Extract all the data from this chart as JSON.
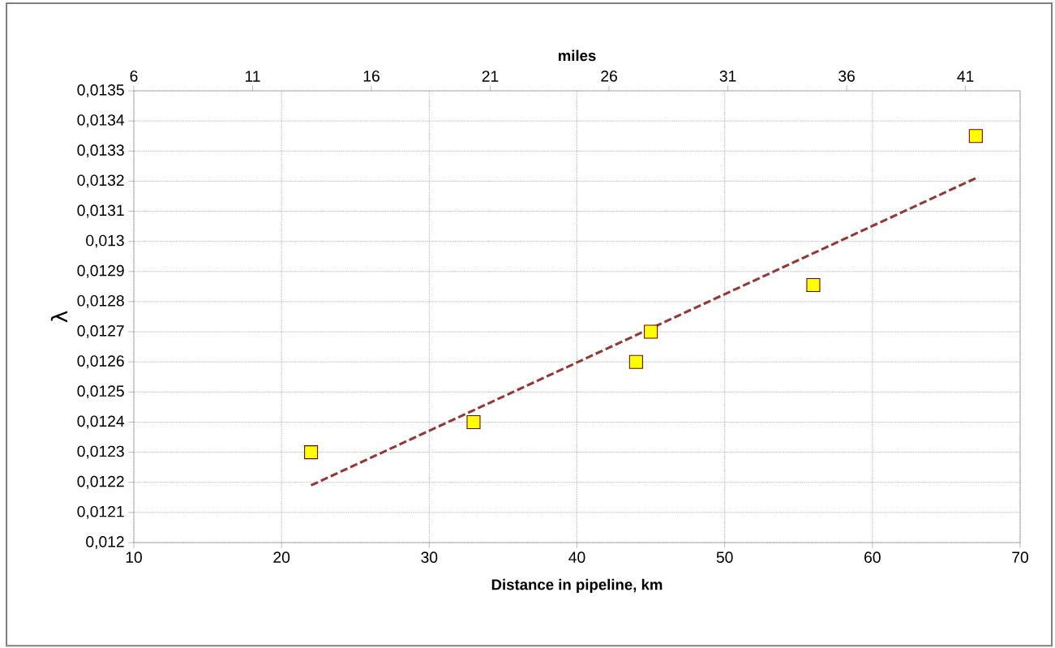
{
  "chart_data": {
    "type": "scatter",
    "xlabel": "Distance in pipeline, km",
    "ylabel": "λ",
    "x2label": "miles",
    "xlim": [
      10,
      70
    ],
    "xticks": [
      10,
      20,
      30,
      40,
      50,
      60,
      70
    ],
    "x2lim": [
      6,
      43.3
    ],
    "x2ticks": [
      6,
      11,
      16,
      21,
      26,
      31,
      36,
      41
    ],
    "ylim": [
      0.012,
      0.0135
    ],
    "yticks": [
      {
        "value": 0.012,
        "label": "0,012"
      },
      {
        "value": 0.0121,
        "label": "0,0121"
      },
      {
        "value": 0.0122,
        "label": "0,0122"
      },
      {
        "value": 0.0123,
        "label": "0,0123"
      },
      {
        "value": 0.0124,
        "label": "0,0124"
      },
      {
        "value": 0.0125,
        "label": "0,0125"
      },
      {
        "value": 0.0126,
        "label": "0,0126"
      },
      {
        "value": 0.0127,
        "label": "0,0127"
      },
      {
        "value": 0.0128,
        "label": "0,0128"
      },
      {
        "value": 0.0129,
        "label": "0,0129"
      },
      {
        "value": 0.013,
        "label": "0,013"
      },
      {
        "value": 0.0131,
        "label": "0,0131"
      },
      {
        "value": 0.0132,
        "label": "0,0132"
      },
      {
        "value": 0.0133,
        "label": "0,0133"
      },
      {
        "value": 0.0134,
        "label": "0,0134"
      },
      {
        "value": 0.0135,
        "label": "0,0135"
      }
    ],
    "grid": true,
    "series": [
      {
        "type": "line",
        "color": "#953735",
        "line_style": "dashed",
        "marker": "none",
        "x": [
          22,
          67
        ],
        "values": [
          0.01219,
          0.01321
        ]
      },
      {
        "color": "#ffff00",
        "marker": "square",
        "x": [
          22,
          33,
          44,
          45,
          56,
          67
        ],
        "values": [
          0.0123,
          0.0124,
          0.0126,
          0.0127,
          0.012855,
          0.01335
        ]
      }
    ]
  }
}
